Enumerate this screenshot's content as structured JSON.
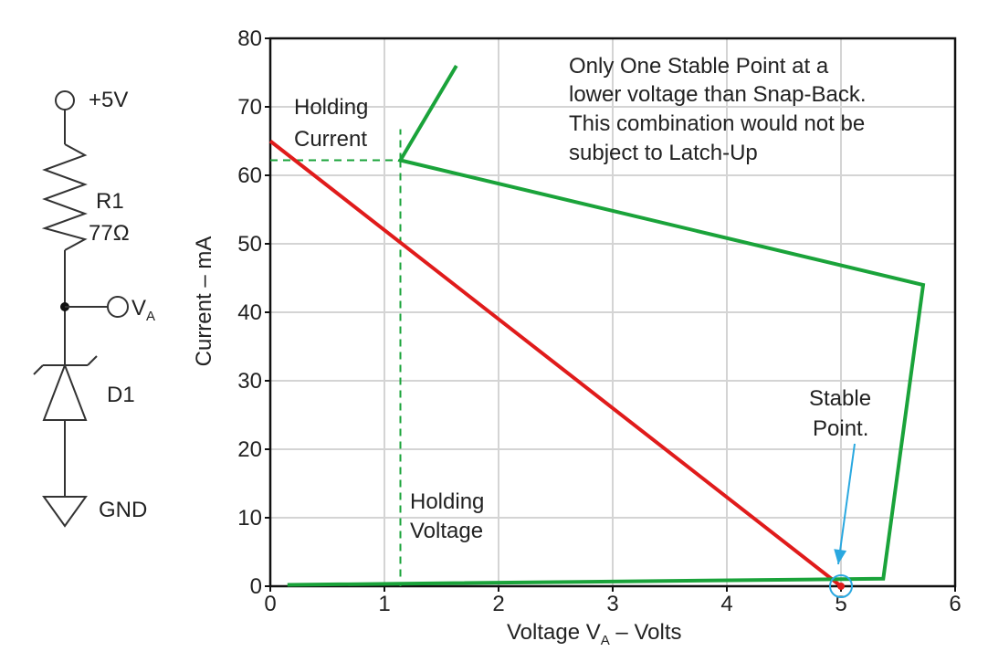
{
  "schematic": {
    "supply_label": "+5V",
    "resistor_name": "R1",
    "resistor_value": "77Ω",
    "node_label": "V",
    "node_sub": "A",
    "diode_name": "D1",
    "ground_label": "GND"
  },
  "chart_data": {
    "type": "line",
    "xlabel_main": "Voltage V",
    "xlabel_sub": "A",
    "xlabel_tail": " – Volts",
    "ylabel": "Current – mA",
    "xlim": [
      0,
      6
    ],
    "ylim": [
      0,
      80
    ],
    "x_ticks": [
      "0",
      "1",
      "2",
      "3",
      "4",
      "5",
      "6"
    ],
    "y_ticks": [
      "0",
      "10",
      "20",
      "30",
      "40",
      "50",
      "60",
      "70",
      "80"
    ],
    "grid": true,
    "series": [
      {
        "color": "#e01b1b",
        "points": [
          [
            0,
            65
          ],
          [
            5,
            0
          ]
        ]
      },
      {
        "color": "#1aa33a",
        "points": [
          [
            0.15,
            0.2
          ],
          [
            5.37,
            1.1
          ],
          [
            5.72,
            44
          ],
          [
            1.14,
            62.2
          ],
          [
            1.63,
            76
          ]
        ]
      }
    ],
    "holding_current_mA": 62.2,
    "holding_voltage_V": 1.14,
    "stable_point": [
      5,
      0
    ],
    "annotations": {
      "holding_current": [
        "Holding",
        "Current"
      ],
      "holding_voltage": [
        "Holding",
        "Voltage"
      ],
      "stable_point": [
        "Stable",
        "Point."
      ],
      "note": [
        "Only One Stable Point at a",
        "lower voltage than Snap-Back.",
        "This combination would not be",
        "subject to Latch-Up"
      ]
    },
    "colors": {
      "dashed": "#1aa33a",
      "stable_marker": "#2aa8e0",
      "grid": "#d4d4d4",
      "axis": "#111111"
    }
  }
}
